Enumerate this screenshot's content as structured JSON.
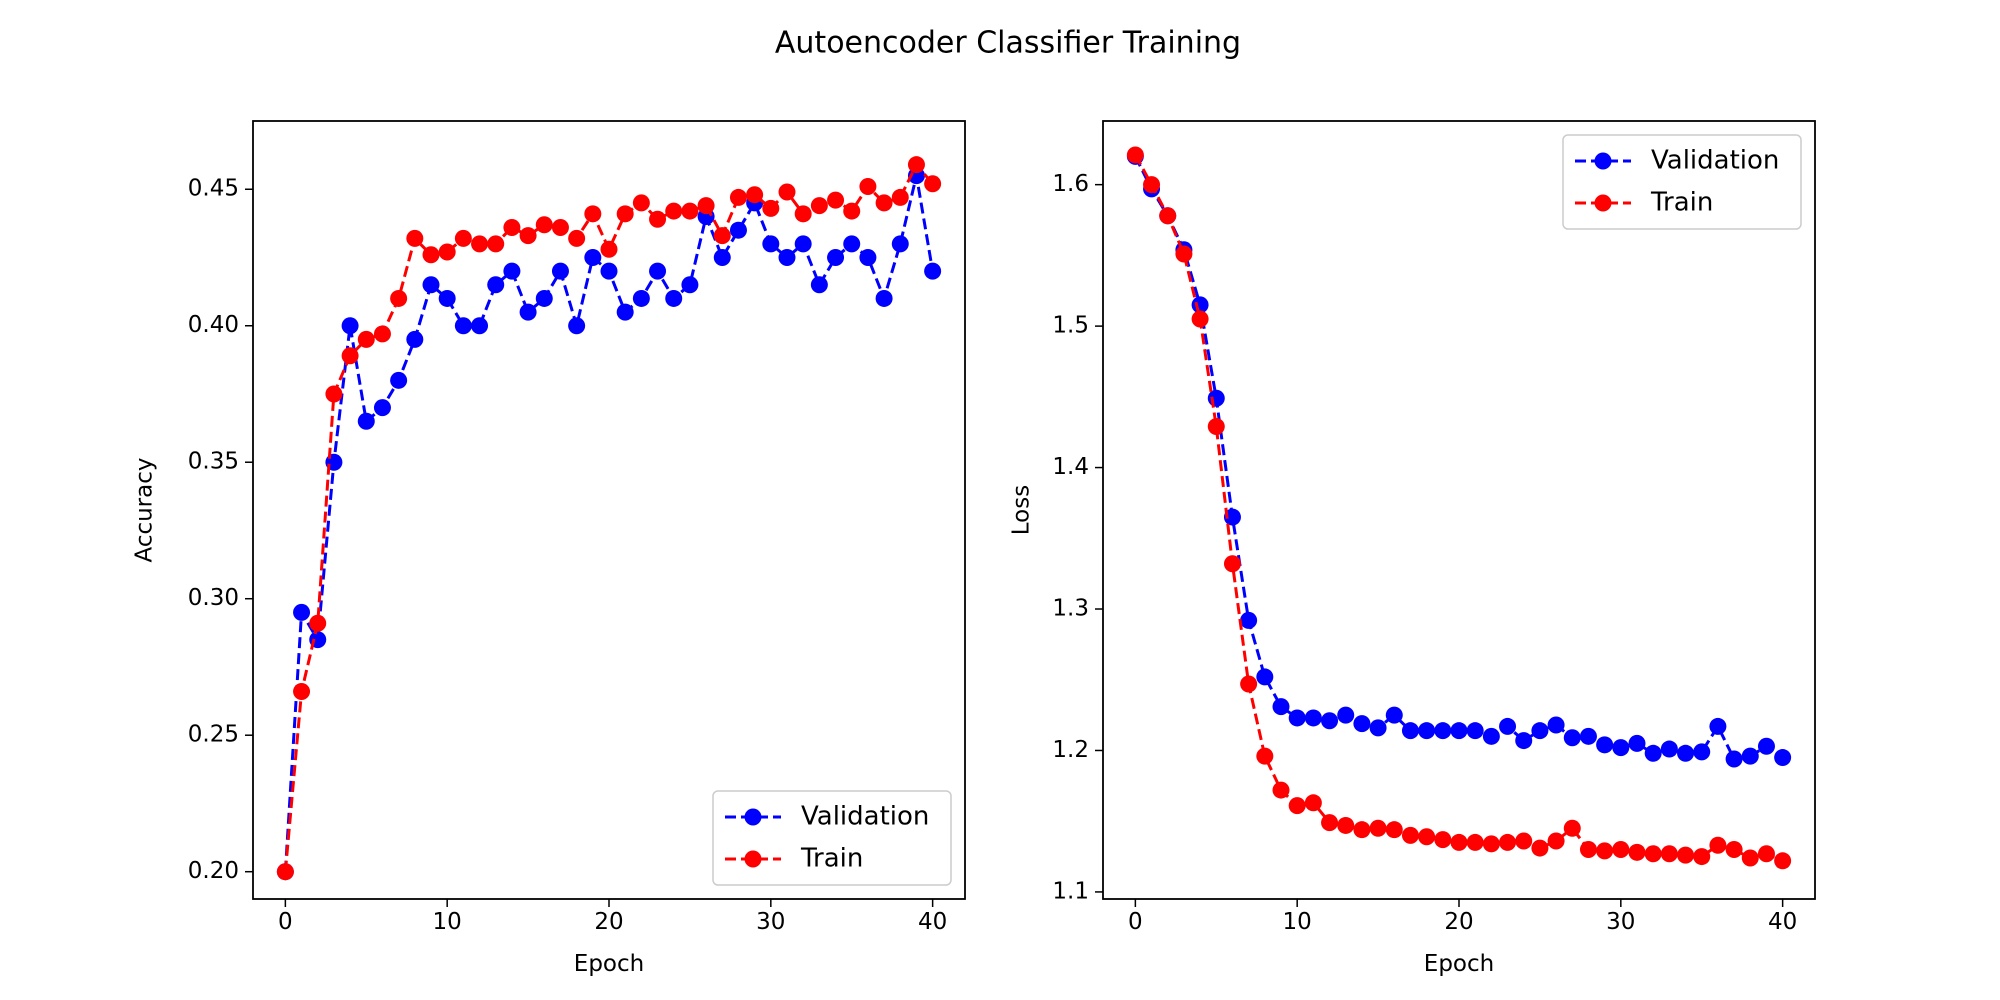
{
  "figure": {
    "title": "Autoencoder Classifier Training"
  },
  "chart_data": [
    {
      "type": "line",
      "xlabel": "Epoch",
      "ylabel": "Accuracy",
      "xlim": [
        -2,
        42
      ],
      "ylim": [
        0.19,
        0.475
      ],
      "xticks": [
        0,
        10,
        20,
        30,
        40
      ],
      "yticks": [
        0.2,
        0.25,
        0.3,
        0.35,
        0.4,
        0.45
      ],
      "ytick_labels": [
        "0.20",
        "0.25",
        "0.30",
        "0.35",
        "0.40",
        "0.45"
      ],
      "legend_position": "bottom-right",
      "grid": false,
      "series": [
        {
          "name": "Validation",
          "color": "#0000ff",
          "line_style": "dashed",
          "marker": "circle",
          "x": [
            0,
            1,
            2,
            3,
            4,
            5,
            6,
            7,
            8,
            9,
            10,
            11,
            12,
            13,
            14,
            15,
            16,
            17,
            18,
            19,
            20,
            21,
            22,
            23,
            24,
            25,
            26,
            27,
            28,
            29,
            30,
            31,
            32,
            33,
            34,
            35,
            36,
            37,
            38,
            39,
            40
          ],
          "values": [
            0.2,
            0.295,
            0.285,
            0.35,
            0.4,
            0.365,
            0.37,
            0.38,
            0.395,
            0.415,
            0.41,
            0.4,
            0.4,
            0.415,
            0.42,
            0.405,
            0.41,
            0.42,
            0.4,
            0.425,
            0.42,
            0.405,
            0.41,
            0.42,
            0.41,
            0.415,
            0.44,
            0.425,
            0.435,
            0.445,
            0.43,
            0.425,
            0.43,
            0.415,
            0.425,
            0.43,
            0.425,
            0.41,
            0.43,
            0.455,
            0.42
          ]
        },
        {
          "name": "Train",
          "color": "#ff0000",
          "line_style": "dashed",
          "marker": "circle",
          "x": [
            0,
            1,
            2,
            3,
            4,
            5,
            6,
            7,
            8,
            9,
            10,
            11,
            12,
            13,
            14,
            15,
            16,
            17,
            18,
            19,
            20,
            21,
            22,
            23,
            24,
            25,
            26,
            27,
            28,
            29,
            30,
            31,
            32,
            33,
            34,
            35,
            36,
            37,
            38,
            39,
            40
          ],
          "values": [
            0.2,
            0.266,
            0.291,
            0.375,
            0.389,
            0.395,
            0.397,
            0.41,
            0.432,
            0.426,
            0.427,
            0.432,
            0.43,
            0.43,
            0.436,
            0.433,
            0.437,
            0.436,
            0.432,
            0.441,
            0.428,
            0.441,
            0.445,
            0.439,
            0.442,
            0.442,
            0.444,
            0.433,
            0.447,
            0.448,
            0.443,
            0.449,
            0.441,
            0.444,
            0.446,
            0.442,
            0.451,
            0.445,
            0.447,
            0.459,
            0.452
          ]
        }
      ]
    },
    {
      "type": "line",
      "xlabel": "Epoch",
      "ylabel": "Loss",
      "xlim": [
        -2,
        42
      ],
      "ylim": [
        1.095,
        1.645
      ],
      "xticks": [
        0,
        10,
        20,
        30,
        40
      ],
      "yticks": [
        1.1,
        1.2,
        1.3,
        1.4,
        1.5,
        1.6
      ],
      "ytick_labels": [
        "1.1",
        "1.2",
        "1.3",
        "1.4",
        "1.5",
        "1.6"
      ],
      "legend_position": "top-right",
      "grid": false,
      "series": [
        {
          "name": "Validation",
          "color": "#0000ff",
          "line_style": "dashed",
          "marker": "circle",
          "x": [
            0,
            1,
            2,
            3,
            4,
            5,
            6,
            7,
            8,
            9,
            10,
            11,
            12,
            13,
            14,
            15,
            16,
            17,
            18,
            19,
            20,
            21,
            22,
            23,
            24,
            25,
            26,
            27,
            28,
            29,
            30,
            31,
            32,
            33,
            34,
            35,
            36,
            37,
            38,
            39,
            40
          ],
          "values": [
            1.62,
            1.597,
            1.578,
            1.554,
            1.515,
            1.449,
            1.365,
            1.292,
            1.252,
            1.231,
            1.223,
            1.223,
            1.221,
            1.225,
            1.219,
            1.216,
            1.225,
            1.214,
            1.214,
            1.214,
            1.214,
            1.214,
            1.21,
            1.217,
            1.207,
            1.214,
            1.218,
            1.209,
            1.21,
            1.204,
            1.202,
            1.205,
            1.198,
            1.201,
            1.198,
            1.199,
            1.217,
            1.194,
            1.196,
            1.203,
            1.195
          ]
        },
        {
          "name": "Train",
          "color": "#ff0000",
          "line_style": "dashed",
          "marker": "circle",
          "x": [
            0,
            1,
            2,
            3,
            4,
            5,
            6,
            7,
            8,
            9,
            10,
            11,
            12,
            13,
            14,
            15,
            16,
            17,
            18,
            19,
            20,
            21,
            22,
            23,
            24,
            25,
            26,
            27,
            28,
            29,
            30,
            31,
            32,
            33,
            34,
            35,
            36,
            37,
            38,
            39,
            40
          ],
          "values": [
            1.621,
            1.6,
            1.578,
            1.551,
            1.505,
            1.429,
            1.332,
            1.247,
            1.196,
            1.172,
            1.161,
            1.163,
            1.149,
            1.147,
            1.144,
            1.145,
            1.144,
            1.14,
            1.139,
            1.137,
            1.135,
            1.135,
            1.134,
            1.135,
            1.136,
            1.131,
            1.136,
            1.145,
            1.13,
            1.129,
            1.13,
            1.128,
            1.127,
            1.127,
            1.126,
            1.125,
            1.133,
            1.13,
            1.124,
            1.127,
            1.122
          ]
        }
      ]
    }
  ]
}
